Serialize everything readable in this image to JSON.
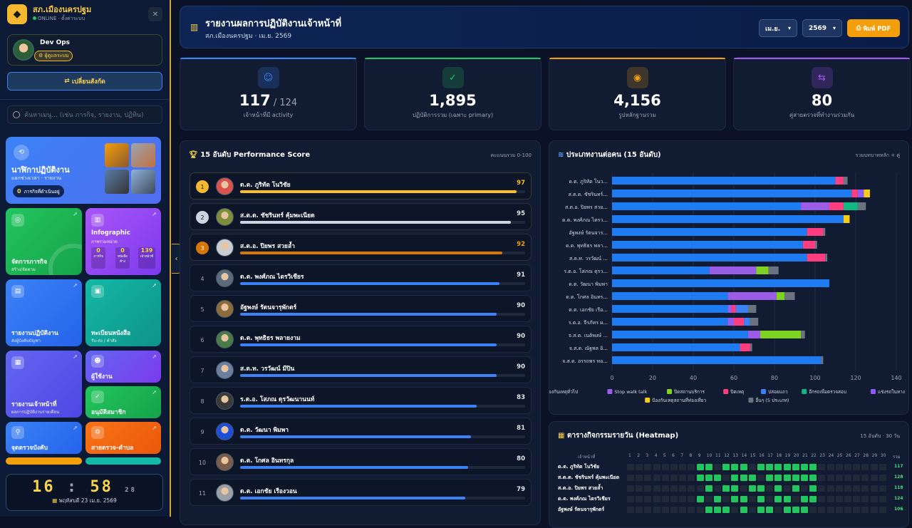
{
  "sidebar": {
    "brand": "สภ.เมืองนครปฐม",
    "status": "ONLINE · ตั้งค่าระบบ",
    "close_icon": "close-icon",
    "user_name": "Dev Ops",
    "user_role": "ผู้ดูแลระบบ",
    "switch_label": "เปลี่ยนสังกัด",
    "search_placeholder": "ค้นหาเมนู... (เช่น ภารกิจ, รายงาน, ปฏิทิน)",
    "tiles": {
      "clock": {
        "title": "นาฬิกาปฏิบัติงาน",
        "sub": "แยกช่วงเวลา · รายงาน",
        "badge": "0",
        "badge_text": "ภารกิจที่ดำเนินอยู่"
      },
      "missions": {
        "title": "จัดการภารกิจ",
        "sub": "สร้าง/จัดตาม"
      },
      "infographic": {
        "title": "Infographic",
        "sub": "ภาพรวมหน่วย",
        "stats": [
          {
            "v": "0",
            "l": "ภารกิจ"
          },
          {
            "v": "0",
            "l": "หนังสือค้าง"
          },
          {
            "v": "139",
            "l": "เจ้าหน้าที่"
          }
        ]
      },
      "reports": {
        "title": "รายงานปฏิบัติงาน",
        "sub": "ส่งผู้บังคับบัญชา"
      },
      "documents": {
        "title": "ทะเบียนหนังสือ",
        "sub": "รับ-ส่ง / คำสั่ง"
      },
      "officer_report": {
        "title": "รายงานเจ้าหน้าที่",
        "sub": "ผลการปฏิบัติงานรายเดือน"
      },
      "users": {
        "title": "ผู้ใช้งาน",
        "sub": ""
      },
      "approve": {
        "title": "อนุมัติสมาชิก",
        "sub": ""
      },
      "checkpoint": {
        "title": "จุดตรวจบังคับ",
        "sub": ""
      },
      "patrol": {
        "title": "สายตรวจ-ตำบล",
        "sub": ""
      }
    },
    "clock": {
      "hh": "16",
      "mm": "58",
      "ss": "28",
      "date": "พฤหัสบดี 23 เม.ย. 2569"
    }
  },
  "header": {
    "title": "รายงานผลการปฏิบัติงานเจ้าหน้าที่",
    "subtitle": "สภ.เมืองนครปฐม · เม.ย. 2569",
    "month": "เม.ย.",
    "year": "2569",
    "print_label": "พิมพ์ PDF"
  },
  "stats": [
    {
      "value": "117",
      "total": " / 124",
      "label": "เจ้าหน้าที่มี activity",
      "color": "#3b82f6",
      "icon": "user-check-icon"
    },
    {
      "value": "1,895",
      "total": "",
      "label": "ปฏิบัติการรวม (เฉพาะ primary)",
      "color": "#22c55e",
      "icon": "clipboard-check-icon"
    },
    {
      "value": "4,156",
      "total": "",
      "label": "รูปหลักฐานรวม",
      "color": "#f59e0b",
      "icon": "camera-icon"
    },
    {
      "value": "80",
      "total": "",
      "label": "คู่สายตรวจที่ทำงานร่วมกัน",
      "color": "#a855f7",
      "icon": "people-arrows-icon"
    }
  ],
  "performance": {
    "title": "15 อันดับ Performance Score",
    "note": "คะแนนรวม 0-100",
    "rows": [
      {
        "rank": "1",
        "name": "ด.ต. ภูริทัต โนวิชัย",
        "score": 97
      },
      {
        "rank": "2",
        "name": "ส.ต.ต. ชัชรินทร์ คุ้มพะเนียด",
        "score": 95
      },
      {
        "rank": "3",
        "name": "ส.ต.อ. ปิยพร สวยล้ำ",
        "score": 92
      },
      {
        "rank": "4",
        "name": "ด.ต. พงศ์ภณ ไตรวิเชียร",
        "score": 91
      },
      {
        "rank": "5",
        "name": "อัฐพงษ์ รัตนจารุพักตร์",
        "score": 90
      },
      {
        "rank": "6",
        "name": "ด.ต. พุทธิธร พลายงาม",
        "score": 90
      },
      {
        "rank": "7",
        "name": "ส.ต.ท. วรวัฒน์ มีปิน",
        "score": 90
      },
      {
        "rank": "8",
        "name": "ร.ต.อ. โสภณ ดุรวัฒนานนท์",
        "score": 83
      },
      {
        "rank": "9",
        "name": "ด.ต. วัฒนา พิมพา",
        "score": 81
      },
      {
        "rank": "10",
        "name": "ด.ต. โกศล อินทรกุล",
        "score": 80
      },
      {
        "rank": "11",
        "name": "ด.ต. เอกชัย เรืองวอน",
        "score": 79
      }
    ]
  },
  "workload": {
    "title": "ประเภทงานต่อคน (15 อันดับ)",
    "note": "รวมบทบาทหลัก + คู่"
  },
  "chart_data": {
    "type": "bar",
    "orientation": "horizontal",
    "stacked": true,
    "categories": [
      "ด.ต. ภูริทัต โนว...",
      "ส.ต.ต. ชัชรินทร์...",
      "ส.ต.อ. ปิยพร สวย...",
      "ด.ต. พงศ์ภณ ไตรว...",
      "อัฐพงษ์ รัตนจาร...",
      "ด.ต. พุทธิธร พลา...",
      "ส.ต.ท. วรวัฒน์ ...",
      "ร.ต.อ. โสภณ ดุรว...",
      "ด.ต. วัฒนา พิมพา",
      "ด.ต. โกศล อินทร...",
      "ด.ต. เอกชัย เรือ...",
      "ร.ต.อ. จีรภัทร ผ...",
      "จ.ส.ต. เนติพงษ์ ...",
      "จ.ส.ต. ณัฐพล อิ...",
      "จ.ส.ต. อรรถพร ทอ..."
    ],
    "series": [
      {
        "name": "ป้องกันเหตุทั่วไป",
        "color": "#1e7bf2",
        "values": [
          110,
          118,
          93,
          114,
          96,
          94,
          96,
          48,
          107,
          57,
          57,
          57,
          67,
          63,
          103
        ]
      },
      {
        "name": "Stop walk talk",
        "color": "#9b5de5",
        "values": [
          0,
          0,
          14,
          0,
          0,
          0,
          0,
          23,
          0,
          24,
          2,
          3,
          6,
          0,
          0
        ]
      },
      {
        "name": "ปิดสถานบริการ",
        "color": "#7ed321",
        "values": [
          0,
          0,
          0,
          0,
          0,
          0,
          0,
          6,
          0,
          4,
          0,
          0,
          20,
          0,
          0
        ]
      },
      {
        "name": "ปิดเหตุ",
        "color": "#ff3d7f",
        "values": [
          4,
          3,
          7,
          0,
          8,
          6,
          9,
          0,
          0,
          0,
          2,
          5,
          0,
          5,
          0
        ]
      },
      {
        "name": "ปล่อยแถว",
        "color": "#3b82f6",
        "values": [
          0,
          0,
          0,
          0,
          0,
          0,
          0,
          0,
          0,
          0,
          6,
          3,
          0,
          0,
          0
        ]
      },
      {
        "name": "อีกรถเพื่อตรวจสอบ",
        "color": "#10b981",
        "values": [
          0,
          0,
          7,
          0,
          0,
          0,
          0,
          0,
          0,
          0,
          0,
          0,
          0,
          0,
          0
        ]
      },
      {
        "name": "แข่งรถในทาง",
        "color": "#8b5cf6",
        "values": [
          0,
          3,
          0,
          0,
          0,
          0,
          0,
          0,
          0,
          0,
          0,
          0,
          0,
          0,
          0
        ]
      },
      {
        "name": "ป้องกันเหตุสถานที่ท่องเที่ยว",
        "color": "#facc15",
        "values": [
          0,
          3,
          0,
          3,
          0,
          0,
          0,
          0,
          0,
          0,
          0,
          0,
          0,
          0,
          0
        ]
      },
      {
        "name": "อื่นๆ (5 ประเภท)",
        "color": "#6b7280",
        "values": [
          2,
          0,
          4,
          0,
          1,
          1,
          1,
          5,
          0,
          5,
          4,
          4,
          2,
          1,
          1
        ]
      }
    ],
    "xlim": [
      0,
      140
    ],
    "xticks": [
      0,
      20,
      40,
      60,
      80,
      100,
      120,
      140
    ],
    "legend": "bottom",
    "grid": true
  },
  "heatmap": {
    "title": "ตารางกิจกรรมรายวัน (Heatmap)",
    "note": "15 อันดับ · 30 วัน",
    "col_header": "เจ้าหน้าที่",
    "total_header": "รวม",
    "days": [
      "1",
      "2",
      "3",
      "4",
      "5",
      "6",
      "7",
      "8",
      "9",
      "10",
      "11",
      "12",
      "13",
      "14",
      "15",
      "16",
      "17",
      "18",
      "19",
      "20",
      "21",
      "22",
      "23",
      "24",
      "25",
      "26",
      "27",
      "28",
      "29",
      "30"
    ],
    "rows": [
      {
        "name": "ด.ต. ภูริทัต โนวิชัย",
        "total": "117",
        "active": [
          9,
          10,
          12,
          13,
          14,
          16,
          17,
          18,
          19,
          20,
          21,
          22
        ]
      },
      {
        "name": "ส.ต.ต. ชัชรินทร์ คุ้มพะเนียด",
        "total": "128",
        "active": [
          9,
          10,
          11,
          13,
          14,
          15,
          17,
          18,
          19,
          20,
          21,
          22
        ]
      },
      {
        "name": "ส.ต.อ. ปิยพร สวยล้ำ",
        "total": "118",
        "active": [
          10,
          12,
          13,
          15,
          16,
          18,
          20,
          22
        ]
      },
      {
        "name": "ด.ต. พงศ์ภณ ไตรวิเชียร",
        "total": "124",
        "active": [
          9,
          11,
          13,
          14,
          16,
          18,
          19,
          21,
          22
        ]
      },
      {
        "name": "อัฐพงษ์ รัตนจารุพักตร์",
        "total": "106",
        "active": [
          10,
          11,
          12,
          14,
          16,
          17,
          19,
          20,
          21
        ]
      }
    ]
  }
}
